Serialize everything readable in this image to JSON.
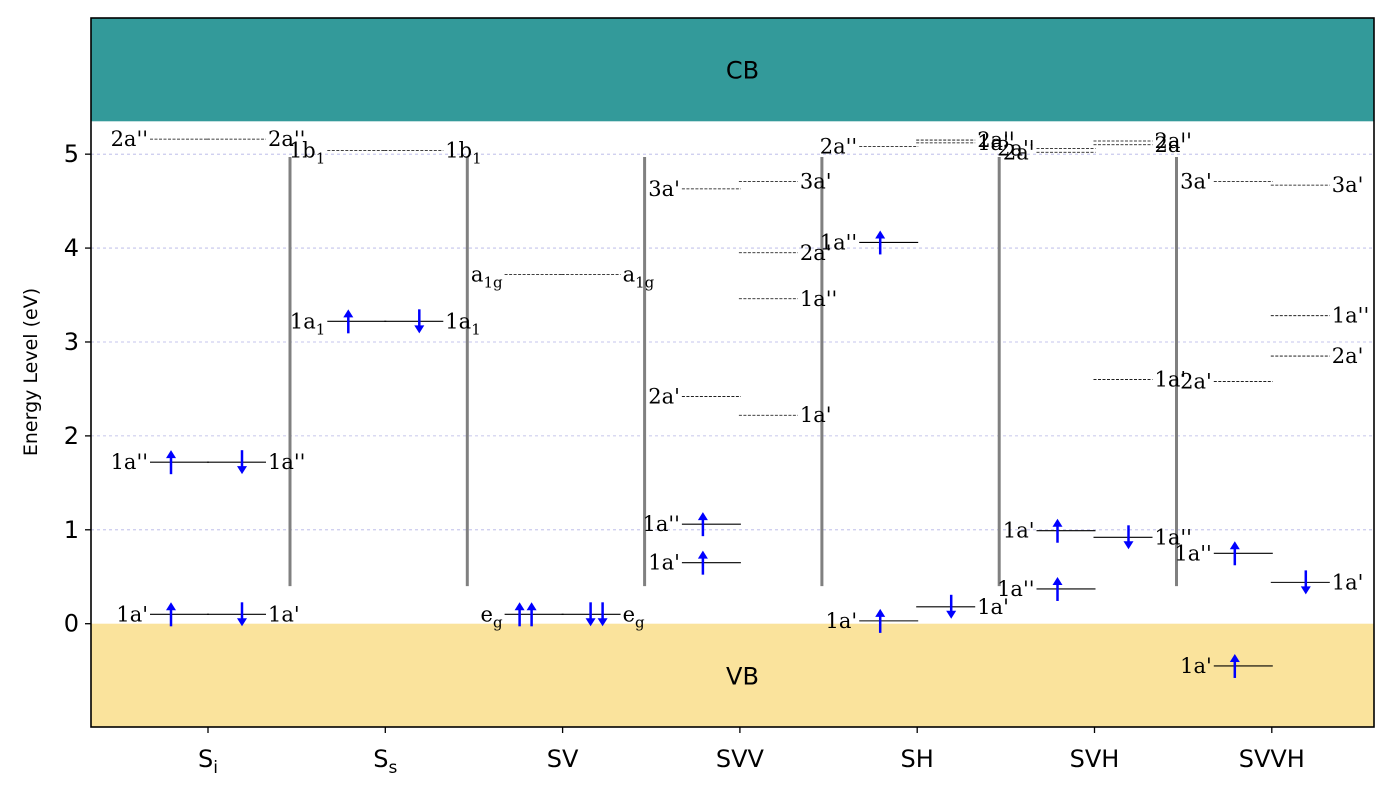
{
  "chart_data": {
    "type": "energy-level diagram",
    "ylabel": "Energy Level (eV)",
    "ylim": [
      -1.1,
      6.45
    ],
    "yticks": [
      "0",
      "1",
      "2",
      "3",
      "4",
      "5"
    ],
    "grid": "horizontal dashed",
    "bands": [
      {
        "name": "CB",
        "from": 5.35,
        "to": 6.45,
        "color": "#339a9a"
      },
      {
        "name": "VB",
        "from": -1.1,
        "to": 0.0,
        "color": "#fae39c"
      }
    ],
    "categories": [
      {
        "name": "S",
        "sub": "i"
      },
      {
        "name": "S",
        "sub": "s"
      },
      {
        "name": "SV",
        "sub": ""
      },
      {
        "name": "SVV",
        "sub": ""
      },
      {
        "name": "SH",
        "sub": ""
      },
      {
        "name": "SVH",
        "sub": ""
      },
      {
        "name": "SVVH",
        "sub": ""
      }
    ],
    "separators": {
      "from": 0.4,
      "to": 4.97
    },
    "levels": [
      {
        "cat": 0,
        "spin": "up",
        "energy": 5.16,
        "label": "2a''",
        "occupied": 0
      },
      {
        "cat": 0,
        "spin": "down",
        "energy": 5.16,
        "label": "2a''",
        "occupied": 0
      },
      {
        "cat": 0,
        "spin": "up",
        "energy": 1.72,
        "label": "1a''",
        "occupied": 1
      },
      {
        "cat": 0,
        "spin": "down",
        "energy": 1.72,
        "label": "1a''",
        "occupied": 1
      },
      {
        "cat": 0,
        "spin": "up",
        "energy": 0.1,
        "label": "1a'",
        "occupied": 1
      },
      {
        "cat": 0,
        "spin": "down",
        "energy": 0.1,
        "label": "1a'",
        "occupied": 1
      },
      {
        "cat": 1,
        "spin": "up",
        "energy": 5.04,
        "label": "1b",
        "sub": "1",
        "occupied": 0
      },
      {
        "cat": 1,
        "spin": "down",
        "energy": 5.04,
        "label": "1b",
        "sub": "1",
        "occupied": 0
      },
      {
        "cat": 1,
        "spin": "up",
        "energy": 3.22,
        "label": "1a",
        "sub": "1",
        "occupied": 1
      },
      {
        "cat": 1,
        "spin": "down",
        "energy": 3.22,
        "label": "1a",
        "sub": "1",
        "occupied": 1
      },
      {
        "cat": 2,
        "spin": "up",
        "energy": 3.72,
        "label": "a",
        "sub": "1g",
        "occupied": 0
      },
      {
        "cat": 2,
        "spin": "down",
        "energy": 3.72,
        "label": "a",
        "sub": "1g",
        "occupied": 0
      },
      {
        "cat": 2,
        "spin": "up",
        "energy": 0.1,
        "label": "e",
        "sub": "g",
        "occupied": 2
      },
      {
        "cat": 2,
        "spin": "down",
        "energy": 0.1,
        "label": "e",
        "sub": "g",
        "occupied": 2
      },
      {
        "cat": 3,
        "spin": "up",
        "energy": 4.63,
        "label": "3a'",
        "occupied": 0
      },
      {
        "cat": 3,
        "spin": "down",
        "energy": 4.71,
        "label": "3a'",
        "occupied": 0
      },
      {
        "cat": 3,
        "spin": "down",
        "energy": 3.95,
        "label": "2a'",
        "occupied": 0
      },
      {
        "cat": 3,
        "spin": "down",
        "energy": 3.46,
        "label": "1a''",
        "occupied": 0
      },
      {
        "cat": 3,
        "spin": "up",
        "energy": 2.42,
        "label": "2a'",
        "occupied": 0
      },
      {
        "cat": 3,
        "spin": "down",
        "energy": 2.22,
        "label": "1a'",
        "occupied": 0
      },
      {
        "cat": 3,
        "spin": "up",
        "energy": 1.06,
        "label": "1a''",
        "occupied": 1
      },
      {
        "cat": 3,
        "spin": "up",
        "energy": 0.65,
        "label": "1a'",
        "occupied": 1
      },
      {
        "cat": 4,
        "spin": "up",
        "energy": 5.08,
        "label": "2a''",
        "occupied": 0
      },
      {
        "cat": 4,
        "spin": "down",
        "energy": 5.15,
        "label": "2a''",
        "occupied": 0
      },
      {
        "cat": 4,
        "spin": "down",
        "energy": 5.12,
        "label": "1a''",
        "occupied": 0
      },
      {
        "cat": 4,
        "spin": "up",
        "energy": 4.06,
        "label": "1a''",
        "occupied": 1
      },
      {
        "cat": 4,
        "spin": "down",
        "energy": 0.18,
        "label": "1a'",
        "occupied": 1
      },
      {
        "cat": 4,
        "spin": "up",
        "energy": 0.03,
        "label": "1a'",
        "occupied": 1
      },
      {
        "cat": 5,
        "spin": "up",
        "energy": 5.06,
        "label": "2a''",
        "occupied": 0
      },
      {
        "cat": 5,
        "spin": "up",
        "energy": 5.02,
        "label": "2a'",
        "occupied": 0
      },
      {
        "cat": 5,
        "spin": "down",
        "energy": 5.14,
        "label": "2a''",
        "occupied": 0
      },
      {
        "cat": 5,
        "spin": "down",
        "energy": 5.1,
        "label": "2a'",
        "occupied": 0
      },
      {
        "cat": 5,
        "spin": "down",
        "energy": 2.6,
        "label": "1a'",
        "occupied": 0
      },
      {
        "cat": 5,
        "spin": "up",
        "energy": 0.99,
        "label": "1a'",
        "occupied": 1
      },
      {
        "cat": 5,
        "spin": "down",
        "energy": 0.92,
        "label": "1a''",
        "occupied": 1
      },
      {
        "cat": 5,
        "spin": "up",
        "energy": 0.37,
        "label": "1a''",
        "occupied": 1
      },
      {
        "cat": 6,
        "spin": "up",
        "energy": 4.71,
        "label": "3a'",
        "occupied": 0
      },
      {
        "cat": 6,
        "spin": "down",
        "energy": 4.67,
        "label": "3a'",
        "occupied": 0
      },
      {
        "cat": 6,
        "spin": "down",
        "energy": 3.28,
        "label": "1a''",
        "occupied": 0
      },
      {
        "cat": 6,
        "spin": "down",
        "energy": 2.85,
        "label": "2a'",
        "occupied": 0
      },
      {
        "cat": 6,
        "spin": "up",
        "energy": 2.58,
        "label": "2a'",
        "occupied": 0
      },
      {
        "cat": 6,
        "spin": "up",
        "energy": 0.75,
        "label": "1a''",
        "occupied": 1
      },
      {
        "cat": 6,
        "spin": "down",
        "energy": 0.44,
        "label": "1a'",
        "occupied": 1
      },
      {
        "cat": 6,
        "spin": "up",
        "energy": -0.45,
        "label": "1a'",
        "occupied": 1
      }
    ]
  },
  "colors": {
    "cb": "#339a9a",
    "vb": "#fae39c",
    "separator": "#808080",
    "grid": "#b4b4e6",
    "arrow": "#0000ff"
  }
}
